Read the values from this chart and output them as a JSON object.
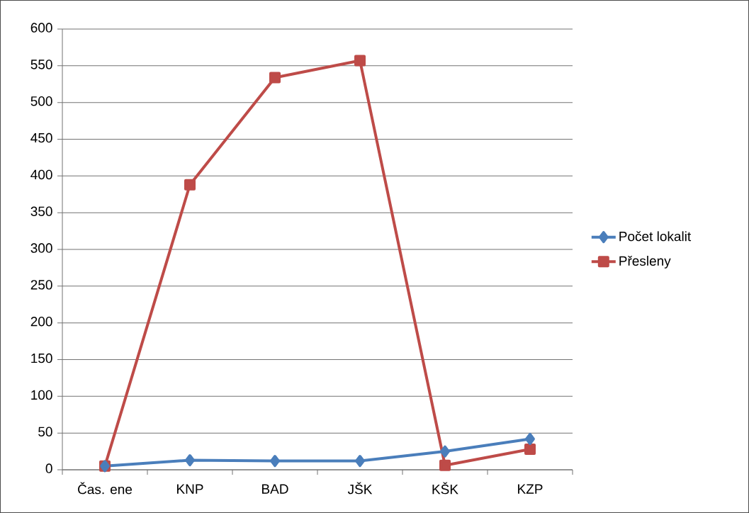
{
  "chart_data": {
    "type": "line",
    "categories": [
      "Čas. ene",
      "KNP",
      "BAD",
      "JŠK",
      "KŠK",
      "KZP"
    ],
    "series": [
      {
        "name": "Počet lokalit",
        "color": "#4a7ebb",
        "marker": "diamond",
        "values": [
          5,
          13,
          12,
          12,
          25,
          42
        ]
      },
      {
        "name": "Přesleny",
        "color": "#be4b48",
        "marker": "square",
        "values": [
          5,
          388,
          534,
          557,
          6,
          28
        ]
      }
    ],
    "ylim": [
      0,
      600
    ],
    "yticks": [
      0,
      50,
      100,
      150,
      200,
      250,
      300,
      350,
      400,
      450,
      500,
      550,
      600
    ],
    "grid": "y",
    "legend": "right",
    "line_style": "solid"
  }
}
